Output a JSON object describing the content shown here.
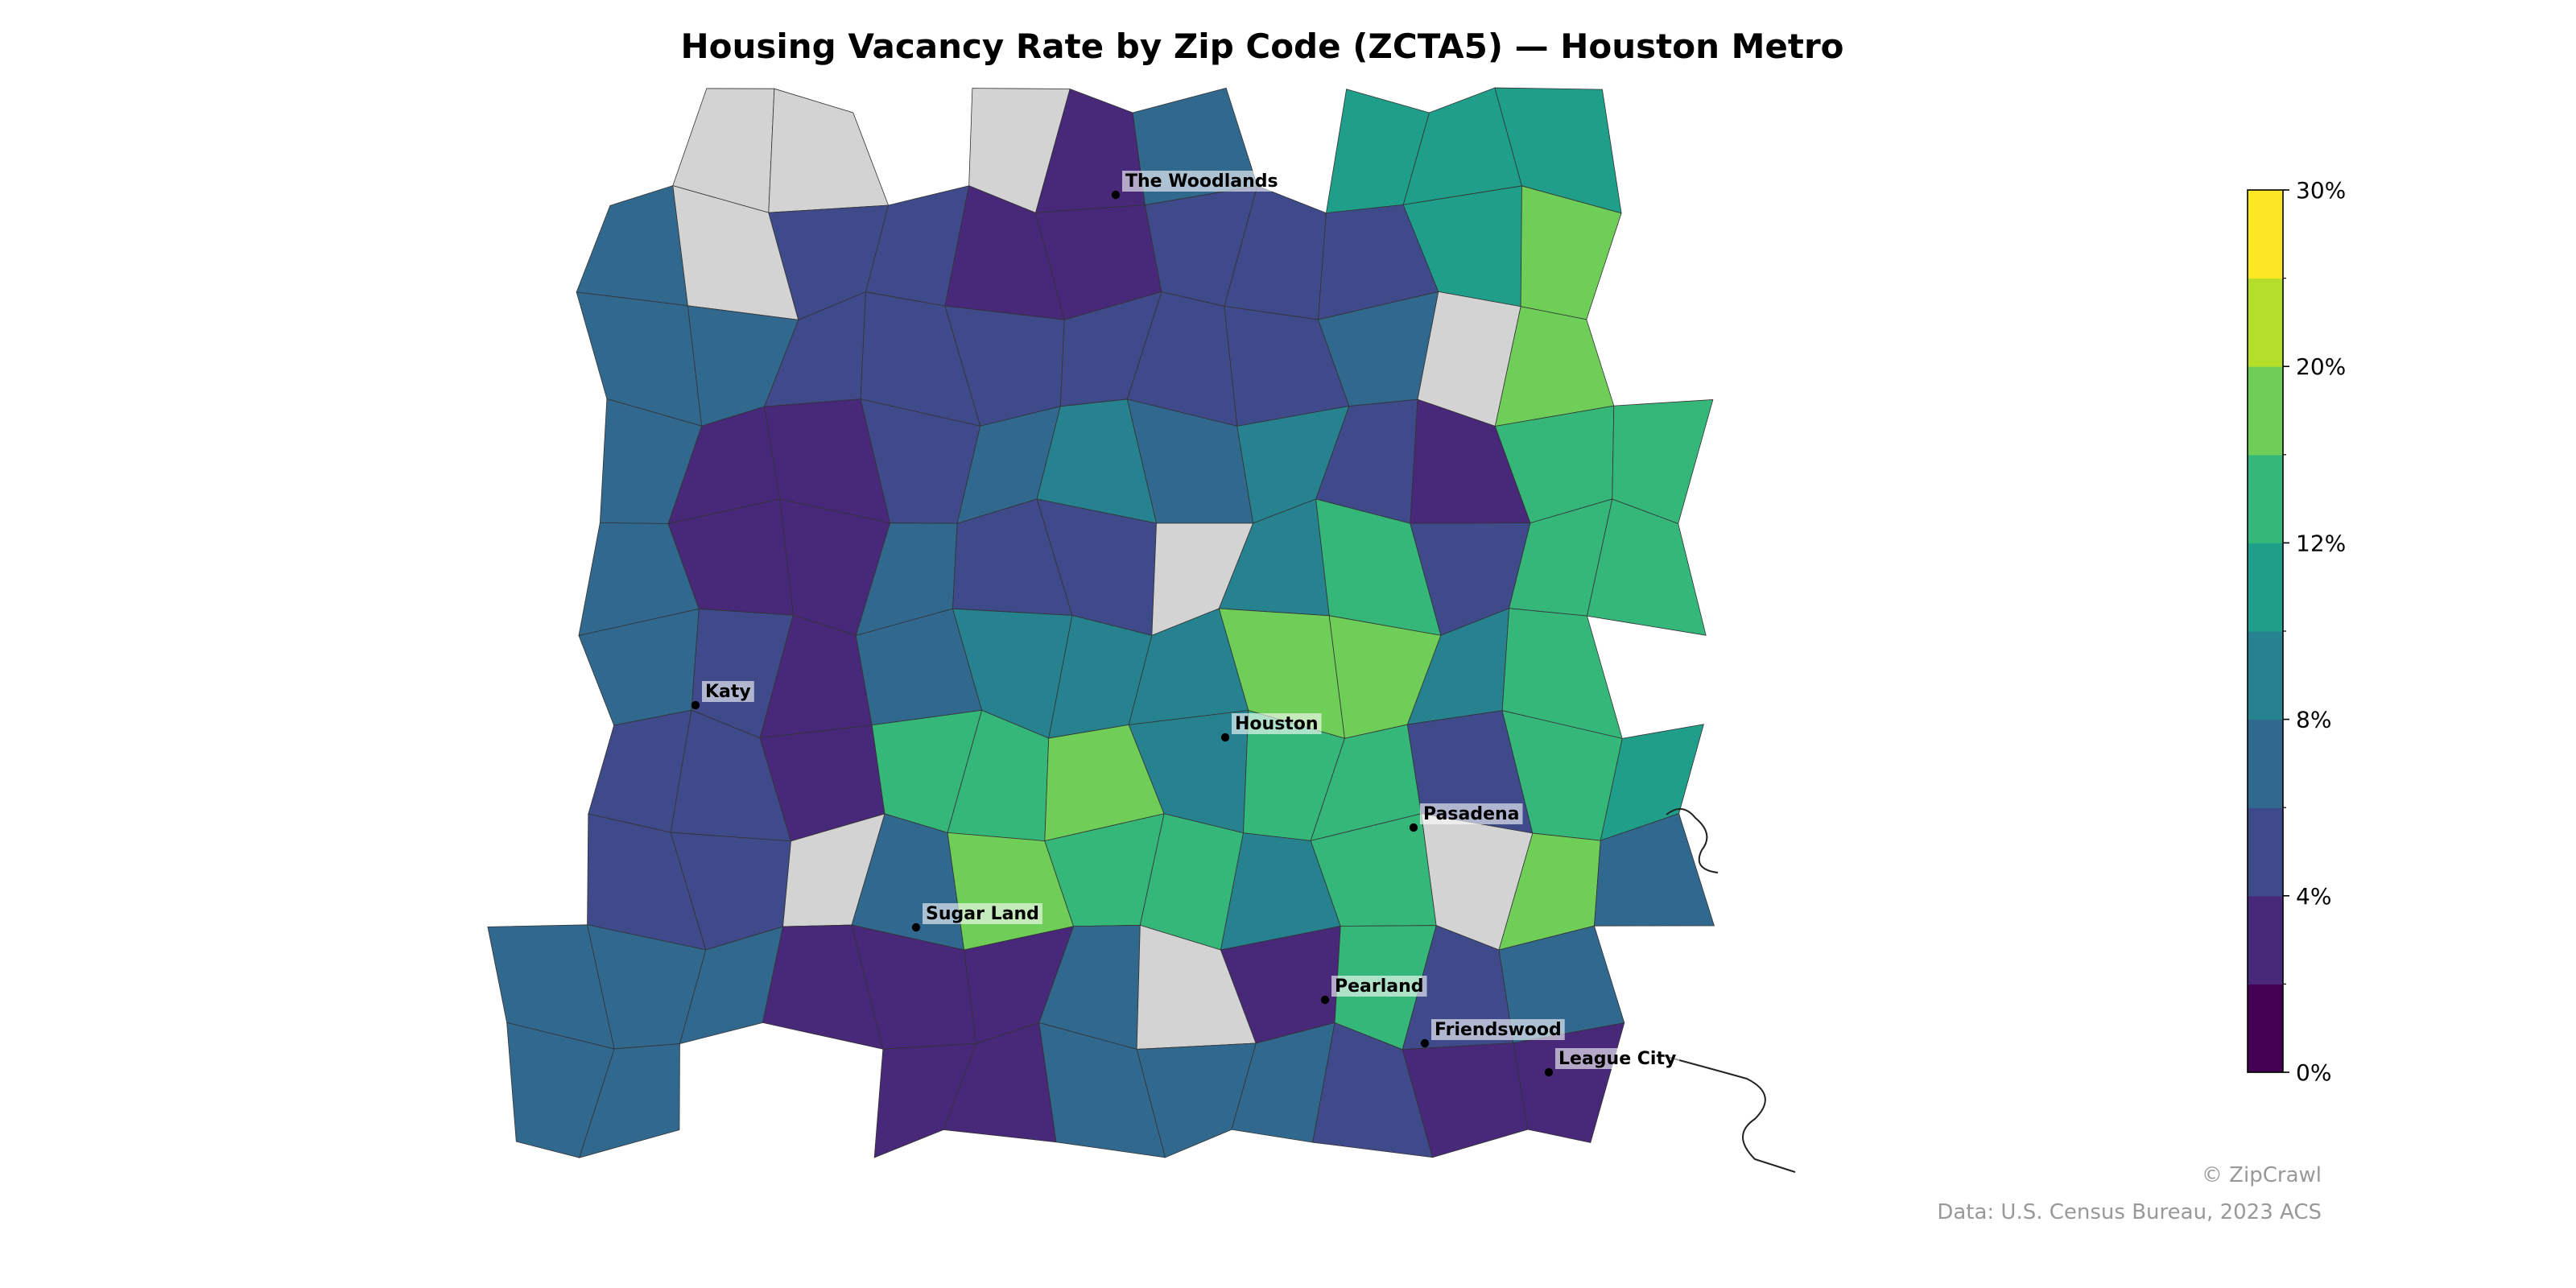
{
  "title": "Housing Vacancy Rate by Zip Code (ZCTA5) — Houston Metro",
  "map": {
    "values": [
      null,
      null,
      null,
      3,
      7,
      11,
      11,
      11,
      7,
      null,
      5,
      5,
      3,
      3,
      5,
      5,
      5,
      11,
      18,
      7,
      7,
      5,
      5,
      5,
      5,
      5,
      5,
      7,
      null,
      18,
      7,
      3,
      3,
      5,
      7,
      9,
      7,
      9,
      5,
      3,
      14,
      14,
      7,
      3,
      3,
      7,
      5,
      5,
      null,
      9,
      13,
      5,
      14,
      14,
      7,
      5,
      3,
      7,
      9,
      9,
      9,
      18,
      18,
      9,
      13,
      5,
      5,
      3,
      14,
      14,
      18,
      9,
      14,
      13,
      5,
      13,
      11,
      5,
      5,
      null,
      7,
      18,
      14,
      14,
      9,
      14,
      null,
      18,
      7,
      7,
      7,
      7,
      3,
      3,
      3,
      7,
      null,
      3,
      14,
      5,
      7,
      7,
      7,
      3,
      3,
      7,
      7,
      7,
      5,
      3,
      3
    ],
    "missing_color": "#d3d3d3",
    "cities": [
      "The Woodlands",
      "Katy",
      "Houston",
      "Pasadena",
      "Sugar Land",
      "Pearland",
      "Friendswood",
      "League City"
    ]
  },
  "colorbar": {
    "bins": [
      0,
      2,
      4,
      6,
      8,
      10,
      12,
      16,
      20,
      25,
      30
    ],
    "colors": [
      "#440154",
      "#482878",
      "#3e4a89",
      "#31688e",
      "#26828e",
      "#1f9e89",
      "#35b779",
      "#6ece58",
      "#b5de2b",
      "#fde725"
    ],
    "ticks": [
      {
        "value": 0,
        "label": "0%"
      },
      {
        "value": 4,
        "label": "4%"
      },
      {
        "value": 8,
        "label": "8%"
      },
      {
        "value": 12,
        "label": "12%"
      },
      {
        "value": 20,
        "label": "20%"
      },
      {
        "value": 30,
        "label": "30%"
      }
    ]
  },
  "footer": {
    "credit": "© ZipCrawl",
    "source": "Data: U.S. Census Bureau, 2023 ACS"
  }
}
